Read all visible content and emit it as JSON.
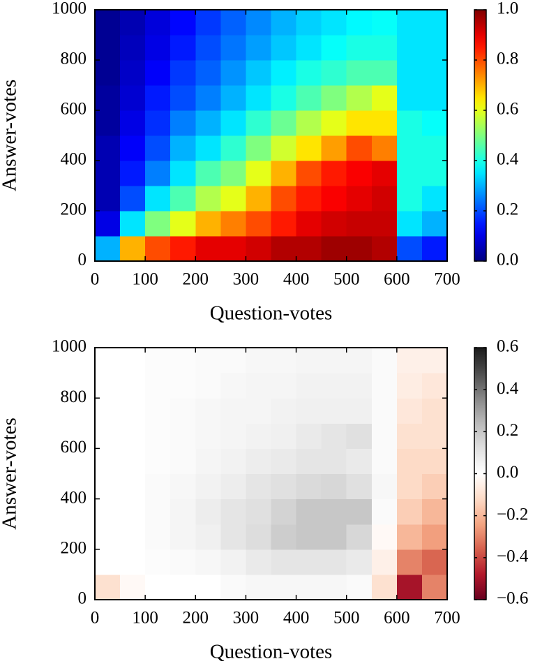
{
  "chart_data": [
    {
      "type": "heatmap",
      "x_label": "Question-votes",
      "y_label": "Answer-votes",
      "xlim": [
        0,
        700
      ],
      "ylim": [
        0,
        1000
      ],
      "xticks": [
        0,
        100,
        200,
        300,
        400,
        500,
        600,
        700
      ],
      "yticks": [
        0,
        200,
        400,
        600,
        800,
        1000
      ],
      "colormap": "jet",
      "clim": [
        0,
        1
      ],
      "cticks": [
        {
          "value": 0,
          "label": "0.0"
        },
        0.2,
        0.4,
        0.6,
        0.8,
        {
          "value": 1,
          "label": "1.0"
        }
      ],
      "values": [
        [
          0.3,
          0.7,
          0.8,
          0.85,
          0.9,
          0.9,
          0.92,
          0.95,
          0.95,
          0.97,
          0.97,
          0.95,
          0.2,
          0.15
        ],
        [
          0.1,
          0.35,
          0.5,
          0.6,
          0.7,
          0.75,
          0.8,
          0.85,
          0.9,
          0.92,
          0.93,
          0.93,
          0.35,
          0.3
        ],
        [
          0.05,
          0.2,
          0.35,
          0.45,
          0.55,
          0.6,
          0.7,
          0.8,
          0.85,
          0.88,
          0.9,
          0.92,
          0.4,
          0.35
        ],
        [
          0.05,
          0.15,
          0.25,
          0.35,
          0.45,
          0.5,
          0.6,
          0.7,
          0.8,
          0.85,
          0.88,
          0.9,
          0.4,
          0.4
        ],
        [
          0.05,
          0.12,
          0.2,
          0.3,
          0.35,
          0.42,
          0.5,
          0.58,
          0.65,
          0.72,
          0.8,
          0.75,
          0.4,
          0.4
        ],
        [
          0.03,
          0.1,
          0.17,
          0.25,
          0.3,
          0.35,
          0.42,
          0.48,
          0.55,
          0.6,
          0.65,
          0.65,
          0.4,
          0.38
        ],
        [
          0.03,
          0.08,
          0.15,
          0.2,
          0.25,
          0.3,
          0.35,
          0.4,
          0.45,
          0.5,
          0.55,
          0.6,
          0.35,
          0.35
        ],
        [
          0.02,
          0.07,
          0.12,
          0.18,
          0.22,
          0.27,
          0.32,
          0.36,
          0.4,
          0.42,
          0.45,
          0.45,
          0.35,
          0.35
        ],
        [
          0.02,
          0.06,
          0.1,
          0.15,
          0.2,
          0.24,
          0.28,
          0.32,
          0.35,
          0.38,
          0.4,
          0.4,
          0.35,
          0.35
        ],
        [
          0.02,
          0.05,
          0.09,
          0.13,
          0.18,
          0.22,
          0.26,
          0.3,
          0.33,
          0.35,
          0.37,
          0.38,
          0.35,
          0.35
        ]
      ]
    },
    {
      "type": "heatmap",
      "x_label": "Question-votes",
      "y_label": "Answer-votes",
      "xlim": [
        0,
        700
      ],
      "ylim": [
        0,
        1000
      ],
      "xticks": [
        0,
        100,
        200,
        300,
        400,
        500,
        600,
        700
      ],
      "yticks": [
        0,
        200,
        400,
        600,
        800,
        1000
      ],
      "colormap": "RdGy",
      "clim": [
        -0.6,
        0.6
      ],
      "cticks": [
        {
          "value": -0.6,
          "label": "−0.6"
        },
        {
          "value": -0.4,
          "label": "−0.4"
        },
        {
          "value": -0.2,
          "label": "−0.2"
        },
        {
          "value": 0,
          "label": "0.0"
        },
        0.2,
        0.4,
        0.6
      ],
      "values": [
        [
          -0.1,
          -0.02,
          0,
          0,
          0,
          0.02,
          0.03,
          0.03,
          0.03,
          0.03,
          0.02,
          -0.1,
          -0.5,
          -0.3
        ],
        [
          0,
          0,
          0.01,
          0.02,
          0.03,
          0.05,
          0.08,
          0.1,
          0.1,
          0.1,
          0.08,
          -0.05,
          -0.3,
          -0.35
        ],
        [
          0,
          0,
          0.02,
          0.04,
          0.06,
          0.1,
          0.13,
          0.18,
          0.2,
          0.2,
          0.15,
          -0.02,
          -0.2,
          -0.25
        ],
        [
          0,
          0,
          0.02,
          0.04,
          0.07,
          0.1,
          0.12,
          0.16,
          0.2,
          0.2,
          0.2,
          0.02,
          -0.15,
          -0.2
        ],
        [
          0,
          0,
          0.02,
          0.03,
          0.05,
          0.07,
          0.1,
          0.12,
          0.14,
          0.15,
          0.12,
          0.03,
          -0.12,
          -0.15
        ],
        [
          0,
          0,
          0.01,
          0.02,
          0.04,
          0.05,
          0.07,
          0.08,
          0.1,
          0.1,
          0.08,
          0.02,
          -0.12,
          -0.12
        ],
        [
          0,
          0,
          0.01,
          0.02,
          0.03,
          0.04,
          0.05,
          0.06,
          0.08,
          0.1,
          0.12,
          0.02,
          -0.1,
          -0.1
        ],
        [
          0,
          0,
          0.01,
          0.02,
          0.03,
          0.04,
          0.04,
          0.05,
          0.06,
          0.06,
          0.06,
          0.02,
          -0.08,
          -0.1
        ],
        [
          0,
          0,
          0.01,
          0.01,
          0.02,
          0.03,
          0.04,
          0.04,
          0.05,
          0.05,
          0.05,
          0.02,
          -0.06,
          -0.08
        ],
        [
          0,
          0,
          0.01,
          0.01,
          0.02,
          0.02,
          0.03,
          0.03,
          0.04,
          0.04,
          0.04,
          0.02,
          -0.05,
          -0.05
        ]
      ]
    }
  ]
}
